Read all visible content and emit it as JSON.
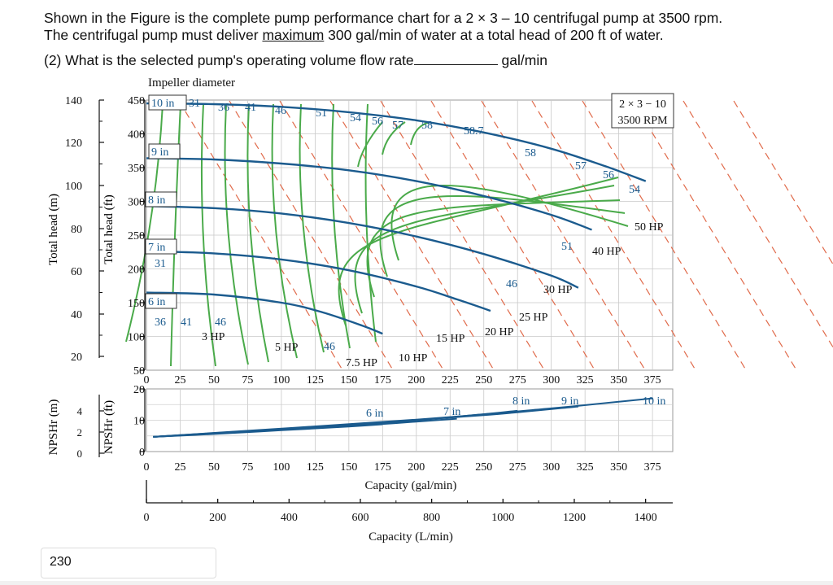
{
  "question": {
    "line1": "Shown in the Figure is the complete pump performance chart for a 2 × 3 – 10 centrifugal pump at 3500 rpm.",
    "line2_pre": "The centrifugal pump must deliver ",
    "line2_u": "maximum",
    "line2_post": " 300 gal/min of water at a total head of 200 ft of water.",
    "line3_pre": "(2)  What is the selected pump's operating volume flow rate",
    "line3_post": "gal/min"
  },
  "answer_value": "230",
  "chart_data": {
    "type": "line",
    "title": "Impeller diameter",
    "model_box": [
      "2 × 3 − 10",
      "3500 RPM"
    ],
    "axes": {
      "head_m_label": "Total head (m)",
      "head_ft_label": "Total head (ft)",
      "head_m_ticks": [
        "140",
        "120",
        "100",
        "80",
        "60",
        "40",
        "20"
      ],
      "head_ft_ticks": [
        "450",
        "400",
        "350",
        "300",
        "250",
        "200",
        "150",
        "100",
        "50"
      ],
      "head_ft_ylim": [
        50,
        450
      ],
      "capacity_gpm_ticks": [
        "0",
        "25",
        "50",
        "75",
        "100",
        "125",
        "150",
        "175",
        "200",
        "225",
        "250",
        "275",
        "300",
        "325",
        "350",
        "375"
      ],
      "capacity_gpm_xlim": [
        0,
        390
      ],
      "capacity_gpm_label": "Capacity (gal/min)",
      "capacity_lpm_ticks": [
        "0",
        "200",
        "400",
        "600",
        "800",
        "1000",
        "1200",
        "1400"
      ],
      "capacity_lpm_label": "Capacity (L/min)",
      "npsh_m_label": "NPSHr (m)",
      "npsh_ft_label": "NPSHr (ft)",
      "npsh_m_ticks": [
        "4",
        "2",
        "0"
      ],
      "npsh_ft_ticks": [
        "20",
        "10",
        "0"
      ],
      "npsh_ft_ylim": [
        0,
        20
      ]
    },
    "head_curves": [
      {
        "name": "10 in",
        "points": [
          [
            0,
            445
          ],
          [
            50,
            444
          ],
          [
            100,
            440
          ],
          [
            150,
            432
          ],
          [
            200,
            420
          ],
          [
            250,
            402
          ],
          [
            300,
            378
          ],
          [
            340,
            352
          ],
          [
            370,
            330
          ]
        ]
      },
      {
        "name": "9 in",
        "points": [
          [
            0,
            364
          ],
          [
            50,
            362
          ],
          [
            100,
            356
          ],
          [
            150,
            346
          ],
          [
            200,
            330
          ],
          [
            250,
            308
          ],
          [
            300,
            280
          ],
          [
            330,
            258
          ]
        ]
      },
      {
        "name": "8 in",
        "points": [
          [
            0,
            293
          ],
          [
            50,
            290
          ],
          [
            100,
            282
          ],
          [
            150,
            268
          ],
          [
            200,
            248
          ],
          [
            250,
            222
          ],
          [
            300,
            190
          ],
          [
            320,
            172
          ]
        ]
      },
      {
        "name": "7 in",
        "points": [
          [
            0,
            226
          ],
          [
            50,
            223
          ],
          [
            100,
            214
          ],
          [
            150,
            198
          ],
          [
            200,
            174
          ],
          [
            230,
            155
          ],
          [
            255,
            138
          ]
        ]
      },
      {
        "name": "6 in",
        "points": [
          [
            0,
            165
          ],
          [
            50,
            162
          ],
          [
            100,
            150
          ],
          [
            130,
            136
          ],
          [
            160,
            116
          ],
          [
            175,
            104
          ]
        ]
      }
    ],
    "efficiency_labels": [
      "31",
      "36",
      "41",
      "46",
      "51",
      "54",
      "56",
      "57",
      "58",
      "58.7",
      "58",
      "57",
      "56",
      "54",
      "51",
      "46",
      "46",
      "31",
      "36",
      "41",
      "46"
    ],
    "power_labels": [
      "3 HP",
      "5 HP",
      "7.5 HP",
      "10 HP",
      "15 HP",
      "20 HP",
      "25 HP",
      "30 HP",
      "40 HP",
      "50 HP"
    ],
    "npsh_curves": [
      {
        "name": "6 in",
        "points": [
          [
            5,
            4.7
          ],
          [
            50,
            5.6
          ],
          [
            100,
            6.8
          ],
          [
            150,
            8.0
          ],
          [
            175,
            8.7
          ]
        ]
      },
      {
        "name": "7 in",
        "points": [
          [
            5,
            4.7
          ],
          [
            100,
            6.9
          ],
          [
            175,
            8.8
          ],
          [
            230,
            10.5
          ]
        ]
      },
      {
        "name": "8 in",
        "points": [
          [
            5,
            4.7
          ],
          [
            100,
            7.0
          ],
          [
            200,
            10.0
          ],
          [
            275,
            13.0
          ]
        ]
      },
      {
        "name": "9 in",
        "points": [
          [
            5,
            4.7
          ],
          [
            150,
            8.6
          ],
          [
            250,
            11.6
          ],
          [
            320,
            14.4
          ]
        ]
      },
      {
        "name": "10 in",
        "points": [
          [
            5,
            4.7
          ],
          [
            200,
            10.2
          ],
          [
            300,
            13.8
          ],
          [
            375,
            17.0
          ]
        ]
      }
    ],
    "grid": true,
    "colors": {
      "head": "#1b5b8e",
      "efficiency": "#4aaa4a",
      "power": "#e06a4a"
    }
  }
}
